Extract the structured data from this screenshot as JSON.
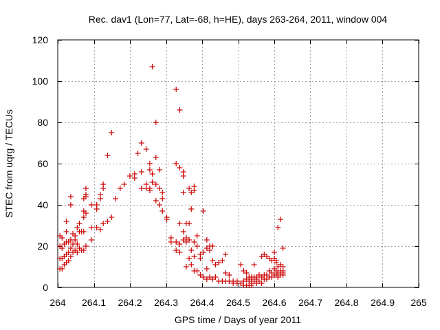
{
  "chart_data": {
    "type": "scatter",
    "title": "Rec. dav1 (Lon=77, Lat=-68, h=HE), days 263-264, 2011, window 004",
    "xlabel": "GPS time / Days of year 2011",
    "ylabel": "STEC from uqrg / TECUs",
    "xlim": [
      264,
      265
    ],
    "ylim": [
      0,
      120
    ],
    "xticks": [
      264,
      264.1,
      264.2,
      264.3,
      264.4,
      264.5,
      264.6,
      264.7,
      264.8,
      264.9,
      265
    ],
    "xtick_labels": [
      "264",
      "264.1",
      "264.2",
      "264.3",
      "264.4",
      "264.5",
      "264.6",
      "264.7",
      "264.8",
      "264.9",
      "265"
    ],
    "yticks": [
      0,
      20,
      40,
      60,
      80,
      100,
      120
    ],
    "ytick_labels": [
      "0",
      "20",
      "40",
      "60",
      "80",
      "100",
      "120"
    ],
    "grid": true,
    "legend": "none",
    "marker": "+",
    "color": "#cc0000",
    "points": [
      [
        264.006,
        25
      ],
      [
        264.006,
        20
      ],
      [
        264.006,
        14
      ],
      [
        264.006,
        9
      ],
      [
        264.012,
        24
      ],
      [
        264.012,
        19
      ],
      [
        264.012,
        14
      ],
      [
        264.012,
        9
      ],
      [
        264.018,
        21
      ],
      [
        264.018,
        15
      ],
      [
        264.018,
        11
      ],
      [
        264.024,
        32
      ],
      [
        264.024,
        27
      ],
      [
        264.024,
        22
      ],
      [
        264.024,
        16
      ],
      [
        264.024,
        12
      ],
      [
        264.03,
        22
      ],
      [
        264.03,
        17
      ],
      [
        264.03,
        13
      ],
      [
        264.036,
        44
      ],
      [
        264.036,
        40
      ],
      [
        264.036,
        23
      ],
      [
        264.036,
        19
      ],
      [
        264.036,
        15
      ],
      [
        264.042,
        26
      ],
      [
        264.042,
        21
      ],
      [
        264.042,
        17
      ],
      [
        264.048,
        25
      ],
      [
        264.048,
        23
      ],
      [
        264.048,
        18
      ],
      [
        264.054,
        29
      ],
      [
        264.054,
        21
      ],
      [
        264.054,
        17
      ],
      [
        264.06,
        31
      ],
      [
        264.06,
        27
      ],
      [
        264.06,
        19
      ],
      [
        264.066,
        27
      ],
      [
        264.066,
        18
      ],
      [
        264.072,
        43
      ],
      [
        264.072,
        37
      ],
      [
        264.072,
        34
      ],
      [
        264.072,
        27
      ],
      [
        264.072,
        18
      ],
      [
        264.078,
        48
      ],
      [
        264.078,
        45
      ],
      [
        264.078,
        44
      ],
      [
        264.078,
        36
      ],
      [
        264.078,
        20
      ],
      [
        264.093,
        40
      ],
      [
        264.093,
        29
      ],
      [
        264.093,
        23
      ],
      [
        264.108,
        40
      ],
      [
        264.108,
        38
      ],
      [
        264.108,
        29
      ],
      [
        264.118,
        45
      ],
      [
        264.118,
        43
      ],
      [
        264.118,
        28
      ],
      [
        264.126,
        50
      ],
      [
        264.126,
        48
      ],
      [
        264.126,
        31
      ],
      [
        264.138,
        64
      ],
      [
        264.138,
        32
      ],
      [
        264.149,
        75
      ],
      [
        264.149,
        34
      ],
      [
        264.16,
        43
      ],
      [
        264.173,
        48
      ],
      [
        264.184,
        50
      ],
      [
        264.2,
        54
      ],
      [
        264.213,
        55
      ],
      [
        264.213,
        53
      ],
      [
        264.222,
        65
      ],
      [
        264.232,
        70
      ],
      [
        264.232,
        56
      ],
      [
        264.232,
        48
      ],
      [
        264.245,
        67
      ],
      [
        264.245,
        50
      ],
      [
        264.245,
        48
      ],
      [
        264.255,
        60
      ],
      [
        264.255,
        57
      ],
      [
        264.255,
        48
      ],
      [
        264.255,
        47
      ],
      [
        264.262,
        107
      ],
      [
        264.262,
        55
      ],
      [
        264.262,
        51
      ],
      [
        264.272,
        80
      ],
      [
        264.272,
        63
      ],
      [
        264.272,
        50
      ],
      [
        264.272,
        42
      ],
      [
        264.282,
        57
      ],
      [
        264.282,
        48
      ],
      [
        264.282,
        40
      ],
      [
        264.29,
        46
      ],
      [
        264.29,
        43
      ],
      [
        264.29,
        37
      ],
      [
        264.302,
        34
      ],
      [
        264.302,
        33
      ],
      [
        264.314,
        24
      ],
      [
        264.314,
        22
      ],
      [
        264.328,
        96
      ],
      [
        264.328,
        60
      ],
      [
        264.328,
        22
      ],
      [
        264.328,
        18
      ],
      [
        264.338,
        86
      ],
      [
        264.338,
        58
      ],
      [
        264.338,
        31
      ],
      [
        264.338,
        21
      ],
      [
        264.338,
        17
      ],
      [
        264.348,
        56
      ],
      [
        264.348,
        54
      ],
      [
        264.348,
        46
      ],
      [
        264.348,
        27
      ],
      [
        264.348,
        23
      ],
      [
        264.356,
        31
      ],
      [
        264.356,
        24
      ],
      [
        264.356,
        22
      ],
      [
        264.356,
        10
      ],
      [
        264.364,
        48
      ],
      [
        264.364,
        31
      ],
      [
        264.364,
        23
      ],
      [
        264.364,
        14
      ],
      [
        264.37,
        46
      ],
      [
        264.37,
        38
      ],
      [
        264.37,
        18
      ],
      [
        264.37,
        11
      ],
      [
        264.378,
        49
      ],
      [
        264.378,
        47
      ],
      [
        264.378,
        22
      ],
      [
        264.378,
        15
      ],
      [
        264.378,
        8
      ],
      [
        264.386,
        25
      ],
      [
        264.386,
        20
      ],
      [
        264.386,
        8
      ],
      [
        264.395,
        16
      ],
      [
        264.395,
        14
      ],
      [
        264.395,
        6
      ],
      [
        264.403,
        37
      ],
      [
        264.403,
        17
      ],
      [
        264.403,
        5
      ],
      [
        264.413,
        23
      ],
      [
        264.413,
        19
      ],
      [
        264.413,
        9
      ],
      [
        264.413,
        4
      ],
      [
        264.421,
        20
      ],
      [
        264.421,
        18
      ],
      [
        264.421,
        5
      ],
      [
        264.429,
        20
      ],
      [
        264.429,
        13
      ],
      [
        264.429,
        4
      ],
      [
        264.437,
        11
      ],
      [
        264.437,
        5
      ],
      [
        264.446,
        12
      ],
      [
        264.446,
        3
      ],
      [
        264.456,
        13
      ],
      [
        264.456,
        3
      ],
      [
        264.465,
        16
      ],
      [
        264.465,
        7
      ],
      [
        264.465,
        3
      ],
      [
        264.475,
        6
      ],
      [
        264.475,
        3
      ],
      [
        264.486,
        3
      ],
      [
        264.486,
        2
      ],
      [
        264.497,
        3
      ],
      [
        264.497,
        2
      ],
      [
        264.507,
        11
      ],
      [
        264.507,
        2
      ],
      [
        264.515,
        8
      ],
      [
        264.515,
        3
      ],
      [
        264.515,
        1
      ],
      [
        264.523,
        7
      ],
      [
        264.523,
        4
      ],
      [
        264.523,
        1
      ],
      [
        264.53,
        5
      ],
      [
        264.53,
        3
      ],
      [
        264.53,
        1
      ],
      [
        264.537,
        5
      ],
      [
        264.537,
        4
      ],
      [
        264.537,
        2
      ],
      [
        264.537,
        1
      ],
      [
        264.544,
        11
      ],
      [
        264.544,
        5
      ],
      [
        264.544,
        3
      ],
      [
        264.551,
        5
      ],
      [
        264.551,
        4
      ],
      [
        264.551,
        2
      ],
      [
        264.558,
        6
      ],
      [
        264.558,
        3
      ],
      [
        264.565,
        15
      ],
      [
        264.565,
        5
      ],
      [
        264.565,
        2
      ],
      [
        264.572,
        16
      ],
      [
        264.572,
        6
      ],
      [
        264.572,
        4
      ],
      [
        264.579,
        15
      ],
      [
        264.579,
        6
      ],
      [
        264.579,
        4
      ],
      [
        264.586,
        14
      ],
      [
        264.586,
        8
      ],
      [
        264.586,
        5
      ],
      [
        264.593,
        13
      ],
      [
        264.593,
        7
      ],
      [
        264.593,
        5
      ],
      [
        264.6,
        17
      ],
      [
        264.6,
        14
      ],
      [
        264.6,
        9
      ],
      [
        264.6,
        6
      ],
      [
        264.605,
        13
      ],
      [
        264.605,
        12
      ],
      [
        264.605,
        8
      ],
      [
        264.605,
        6
      ],
      [
        264.61,
        29
      ],
      [
        264.61,
        10
      ],
      [
        264.61,
        7
      ],
      [
        264.61,
        5
      ],
      [
        264.617,
        33
      ],
      [
        264.617,
        11
      ],
      [
        264.617,
        8
      ],
      [
        264.617,
        6
      ],
      [
        264.624,
        19
      ],
      [
        264.624,
        10
      ],
      [
        264.624,
        8
      ],
      [
        264.624,
        7
      ],
      [
        264.624,
        6
      ]
    ]
  }
}
